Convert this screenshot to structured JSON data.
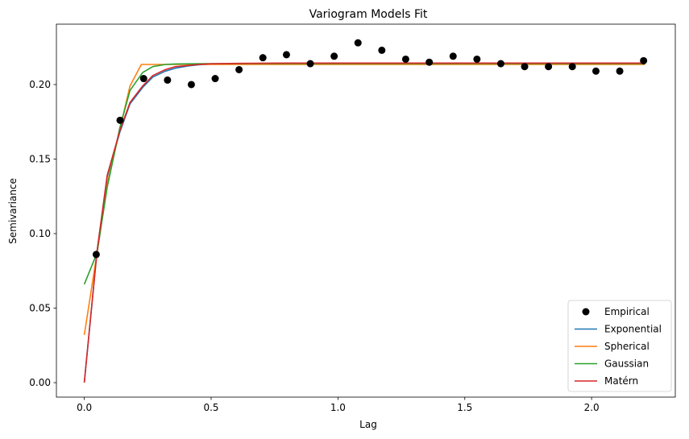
{
  "chart_data": {
    "type": "scatter",
    "title": "Variogram Models Fit",
    "xlabel": "Lag",
    "ylabel": "Semivariance",
    "xlim": [
      -0.11,
      2.33
    ],
    "ylim": [
      -0.0097,
      0.2405
    ],
    "xticks": [
      0.0,
      0.5,
      1.0,
      1.5,
      2.0
    ],
    "xtick_labels": [
      "0.0",
      "0.5",
      "1.0",
      "1.5",
      "2.0"
    ],
    "yticks": [
      0.0,
      0.05,
      0.1,
      0.15,
      0.2
    ],
    "ytick_labels": [
      "0.00",
      "0.05",
      "0.10",
      "0.15",
      "0.20"
    ],
    "grid": false,
    "legend_position": "bottom-right",
    "empirical": {
      "name": "Empirical",
      "color": "#000000",
      "x": [
        0.047,
        0.141,
        0.234,
        0.328,
        0.422,
        0.516,
        0.61,
        0.704,
        0.797,
        0.891,
        0.985,
        1.079,
        1.173,
        1.267,
        1.36,
        1.454,
        1.548,
        1.642,
        1.736,
        1.83,
        1.924,
        2.017,
        2.111,
        2.205
      ],
      "y": [
        0.086,
        0.176,
        0.204,
        0.203,
        0.2,
        0.204,
        0.21,
        0.218,
        0.22,
        0.214,
        0.219,
        0.228,
        0.223,
        0.217,
        0.215,
        0.219,
        0.217,
        0.214,
        0.212,
        0.212,
        0.212,
        0.209,
        0.209,
        0.216
      ]
    },
    "series": [
      {
        "name": "Exponential",
        "color": "#1f77b4",
        "x": [
          0.0,
          0.05,
          0.09,
          0.14,
          0.18,
          0.23,
          0.27,
          0.32,
          0.36,
          0.41,
          0.45,
          0.5,
          0.6,
          0.8,
          1.0,
          1.5,
          2.0,
          2.21
        ],
        "y": [
          0.0,
          0.088,
          0.138,
          0.168,
          0.187,
          0.198,
          0.205,
          0.209,
          0.211,
          0.2125,
          0.2132,
          0.2137,
          0.2141,
          0.2143,
          0.2143,
          0.2143,
          0.2143,
          0.2143
        ]
      },
      {
        "name": "Spherical",
        "color": "#ff7f0e",
        "x": [
          0.0,
          0.05,
          0.09,
          0.14,
          0.18,
          0.225,
          0.27,
          0.5,
          1.0,
          1.5,
          2.0,
          2.21
        ],
        "y": [
          0.032,
          0.087,
          0.133,
          0.17,
          0.199,
          0.2135,
          0.2135,
          0.2135,
          0.2135,
          0.2135,
          0.2135,
          0.2135
        ]
      },
      {
        "name": "Gaussian",
        "color": "#2ca02c",
        "x": [
          0.0,
          0.05,
          0.09,
          0.14,
          0.18,
          0.23,
          0.27,
          0.32,
          0.36,
          0.5,
          1.0,
          1.5,
          2.0,
          2.21
        ],
        "y": [
          0.066,
          0.087,
          0.131,
          0.171,
          0.196,
          0.208,
          0.212,
          0.2135,
          0.2138,
          0.214,
          0.214,
          0.214,
          0.214,
          0.214
        ]
      },
      {
        "name": "Matérn",
        "color": "#d62728",
        "x": [
          0.0,
          0.05,
          0.09,
          0.14,
          0.18,
          0.23,
          0.27,
          0.32,
          0.36,
          0.41,
          0.45,
          0.5,
          0.6,
          0.8,
          1.0,
          1.5,
          2.0,
          2.21
        ],
        "y": [
          0.0,
          0.088,
          0.139,
          0.169,
          0.188,
          0.199,
          0.206,
          0.21,
          0.212,
          0.2128,
          0.2135,
          0.2139,
          0.2142,
          0.2144,
          0.2144,
          0.2144,
          0.2144,
          0.2144
        ]
      }
    ],
    "legend": [
      "Empirical",
      "Exponential",
      "Spherical",
      "Gaussian",
      "Matérn"
    ]
  }
}
